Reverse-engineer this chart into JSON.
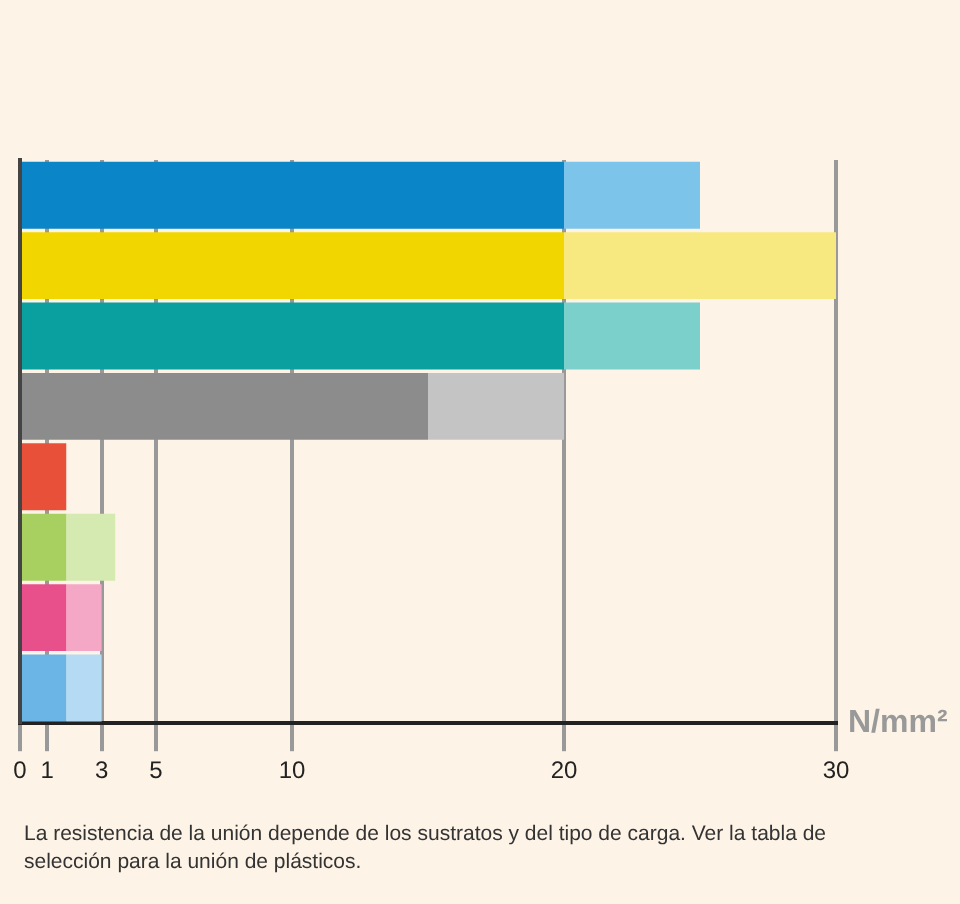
{
  "chart_data": {
    "type": "bar",
    "orientation": "horizontal",
    "stacked": true,
    "categories": [
      null,
      null,
      null,
      null,
      null,
      null,
      null,
      null
    ],
    "series": [
      {
        "colors": [
          "#0a86c8",
          "#f2d600",
          "#0aa0a0",
          "#8c8c8c",
          "#e8503a",
          "#a8d060",
          "#e8508c",
          "#6ab4e6"
        ],
        "values": [
          20,
          20,
          20,
          15,
          1.7,
          1.7,
          1.7,
          1.7
        ]
      },
      {
        "colors": [
          "#7cc4ea",
          "#f8e880",
          "#7cd0cc",
          "#c4c4c4",
          null,
          "#d4eab0",
          "#f4a8c6",
          "#b4daf4"
        ],
        "values": [
          5,
          10,
          5,
          5,
          null,
          1.8,
          1.3,
          1.3
        ]
      }
    ],
    "xlim": [
      0,
      30
    ],
    "xticks": [
      0,
      1,
      3,
      5,
      10,
      20,
      30
    ],
    "xlabel": "N/mm²",
    "grid": "x",
    "legend": false,
    "tick_labels": "x",
    "annotations": [
      "La resistencia de la unión depende de los sustratos y del tipo de carga. Ver la tabla de selección para la unión de plásticos."
    ]
  }
}
